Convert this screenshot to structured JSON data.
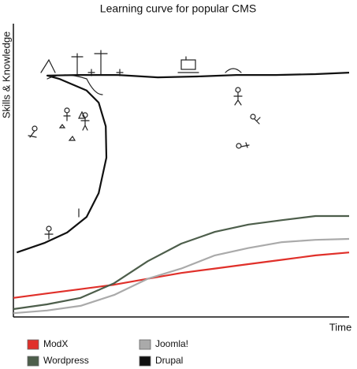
{
  "chart_data": {
    "type": "line",
    "title": "Learning curve for popular CMS",
    "x_label": "Time",
    "y_label": "Skills & Knowledge",
    "xlim": [
      0,
      100
    ],
    "ylim": [
      0,
      100
    ],
    "legend": "bottom",
    "series": [
      {
        "name": "ModX",
        "color": "#e0302a",
        "x": [
          0,
          10,
          20,
          30,
          40,
          50,
          60,
          70,
          80,
          90,
          100
        ],
        "values": [
          6.5,
          8,
          9.5,
          11,
          13,
          15,
          16.5,
          18,
          19.5,
          21,
          22
        ]
      },
      {
        "name": "Wordpress",
        "color": "#4d5e4b",
        "x": [
          0,
          10,
          20,
          30,
          40,
          50,
          60,
          70,
          80,
          90,
          100
        ],
        "values": [
          2.7,
          4.3,
          6.5,
          11.5,
          19,
          25,
          29,
          31.5,
          33,
          34.4,
          34.4
        ]
      },
      {
        "name": "Joomla!",
        "color": "#aaaaaa",
        "x": [
          0,
          10,
          20,
          30,
          40,
          50,
          60,
          70,
          80,
          90,
          100
        ],
        "values": [
          1.3,
          2.2,
          3.8,
          7.5,
          13,
          16.5,
          21,
          23.5,
          25.5,
          26.3,
          26.6
        ]
      },
      {
        "name": "Drupal",
        "color": "#111111",
        "x": [
          1,
          9.4,
          16,
          21.8,
          25.4,
          27.7,
          27.5,
          25.4,
          21.8,
          13.6,
          10.1,
          19.5,
          31.2,
          43,
          54.7,
          66.4,
          78.2,
          90,
          100
        ],
        "values": [
          22,
          25.3,
          28.8,
          34.1,
          42.2,
          54.3,
          65,
          73.1,
          77.2,
          81.2,
          82.3,
          82.5,
          82.5,
          81.7,
          82,
          82.5,
          82.5,
          82.8,
          83.3
        ]
      }
    ]
  }
}
